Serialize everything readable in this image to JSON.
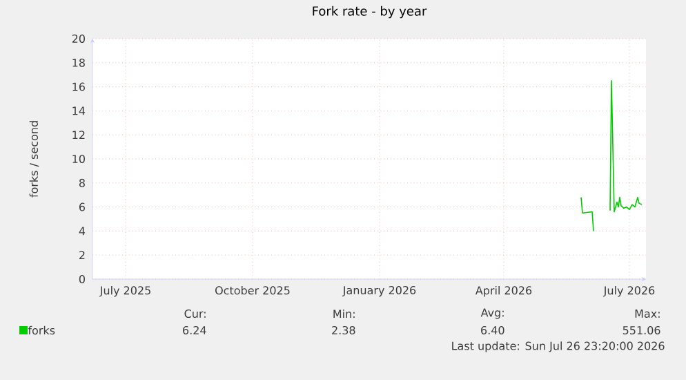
{
  "chart_data": {
    "type": "line",
    "title": "Fork rate - by year",
    "ylabel": "forks / second",
    "x": [
      "2026-05-27",
      "2026-05-28",
      "2026-06-04",
      "2026-06-05",
      null,
      "2026-06-17",
      "2026-06-18",
      "2026-06-20",
      "2026-06-21",
      "2026-06-22",
      "2026-06-23",
      "2026-06-24",
      "2026-06-25",
      "2026-06-27",
      "2026-06-29",
      "2026-07-01",
      "2026-07-03",
      "2026-07-05",
      "2026-07-07",
      "2026-07-08",
      "2026-07-10"
    ],
    "series": [
      {
        "name": "forks",
        "color": "#00cc00",
        "values": [
          6.8,
          5.5,
          5.6,
          4.0,
          null,
          5.7,
          16.5,
          5.6,
          6.0,
          6.4,
          6.0,
          6.8,
          6.1,
          5.9,
          6.0,
          5.8,
          6.2,
          6.0,
          6.8,
          6.3,
          6.2
        ]
      }
    ],
    "xlim": [
      "2025-06-07",
      "2026-07-13"
    ],
    "xticks": [
      {
        "value": "2025-07-01",
        "label": "July 2025"
      },
      {
        "value": "2025-10-01",
        "label": "October 2025"
      },
      {
        "value": "2026-01-01",
        "label": "January 2026"
      },
      {
        "value": "2026-04-01",
        "label": "April 2026"
      },
      {
        "value": "2026-07-01",
        "label": "July 2026"
      }
    ],
    "ylim": [
      0,
      20
    ],
    "yticks": [
      0,
      2,
      4,
      6,
      8,
      10,
      12,
      14,
      16,
      18,
      20
    ],
    "grid": true,
    "legend": "bottom left",
    "marker": "none",
    "line_style": "solid",
    "annotations": [
      "Cur:",
      "6.24",
      "Min:",
      "2.38",
      "Avg:",
      "6.40",
      "Max:",
      "551.06",
      "Last update: Sun Jul 26 23:20:00 2026"
    ]
  }
}
